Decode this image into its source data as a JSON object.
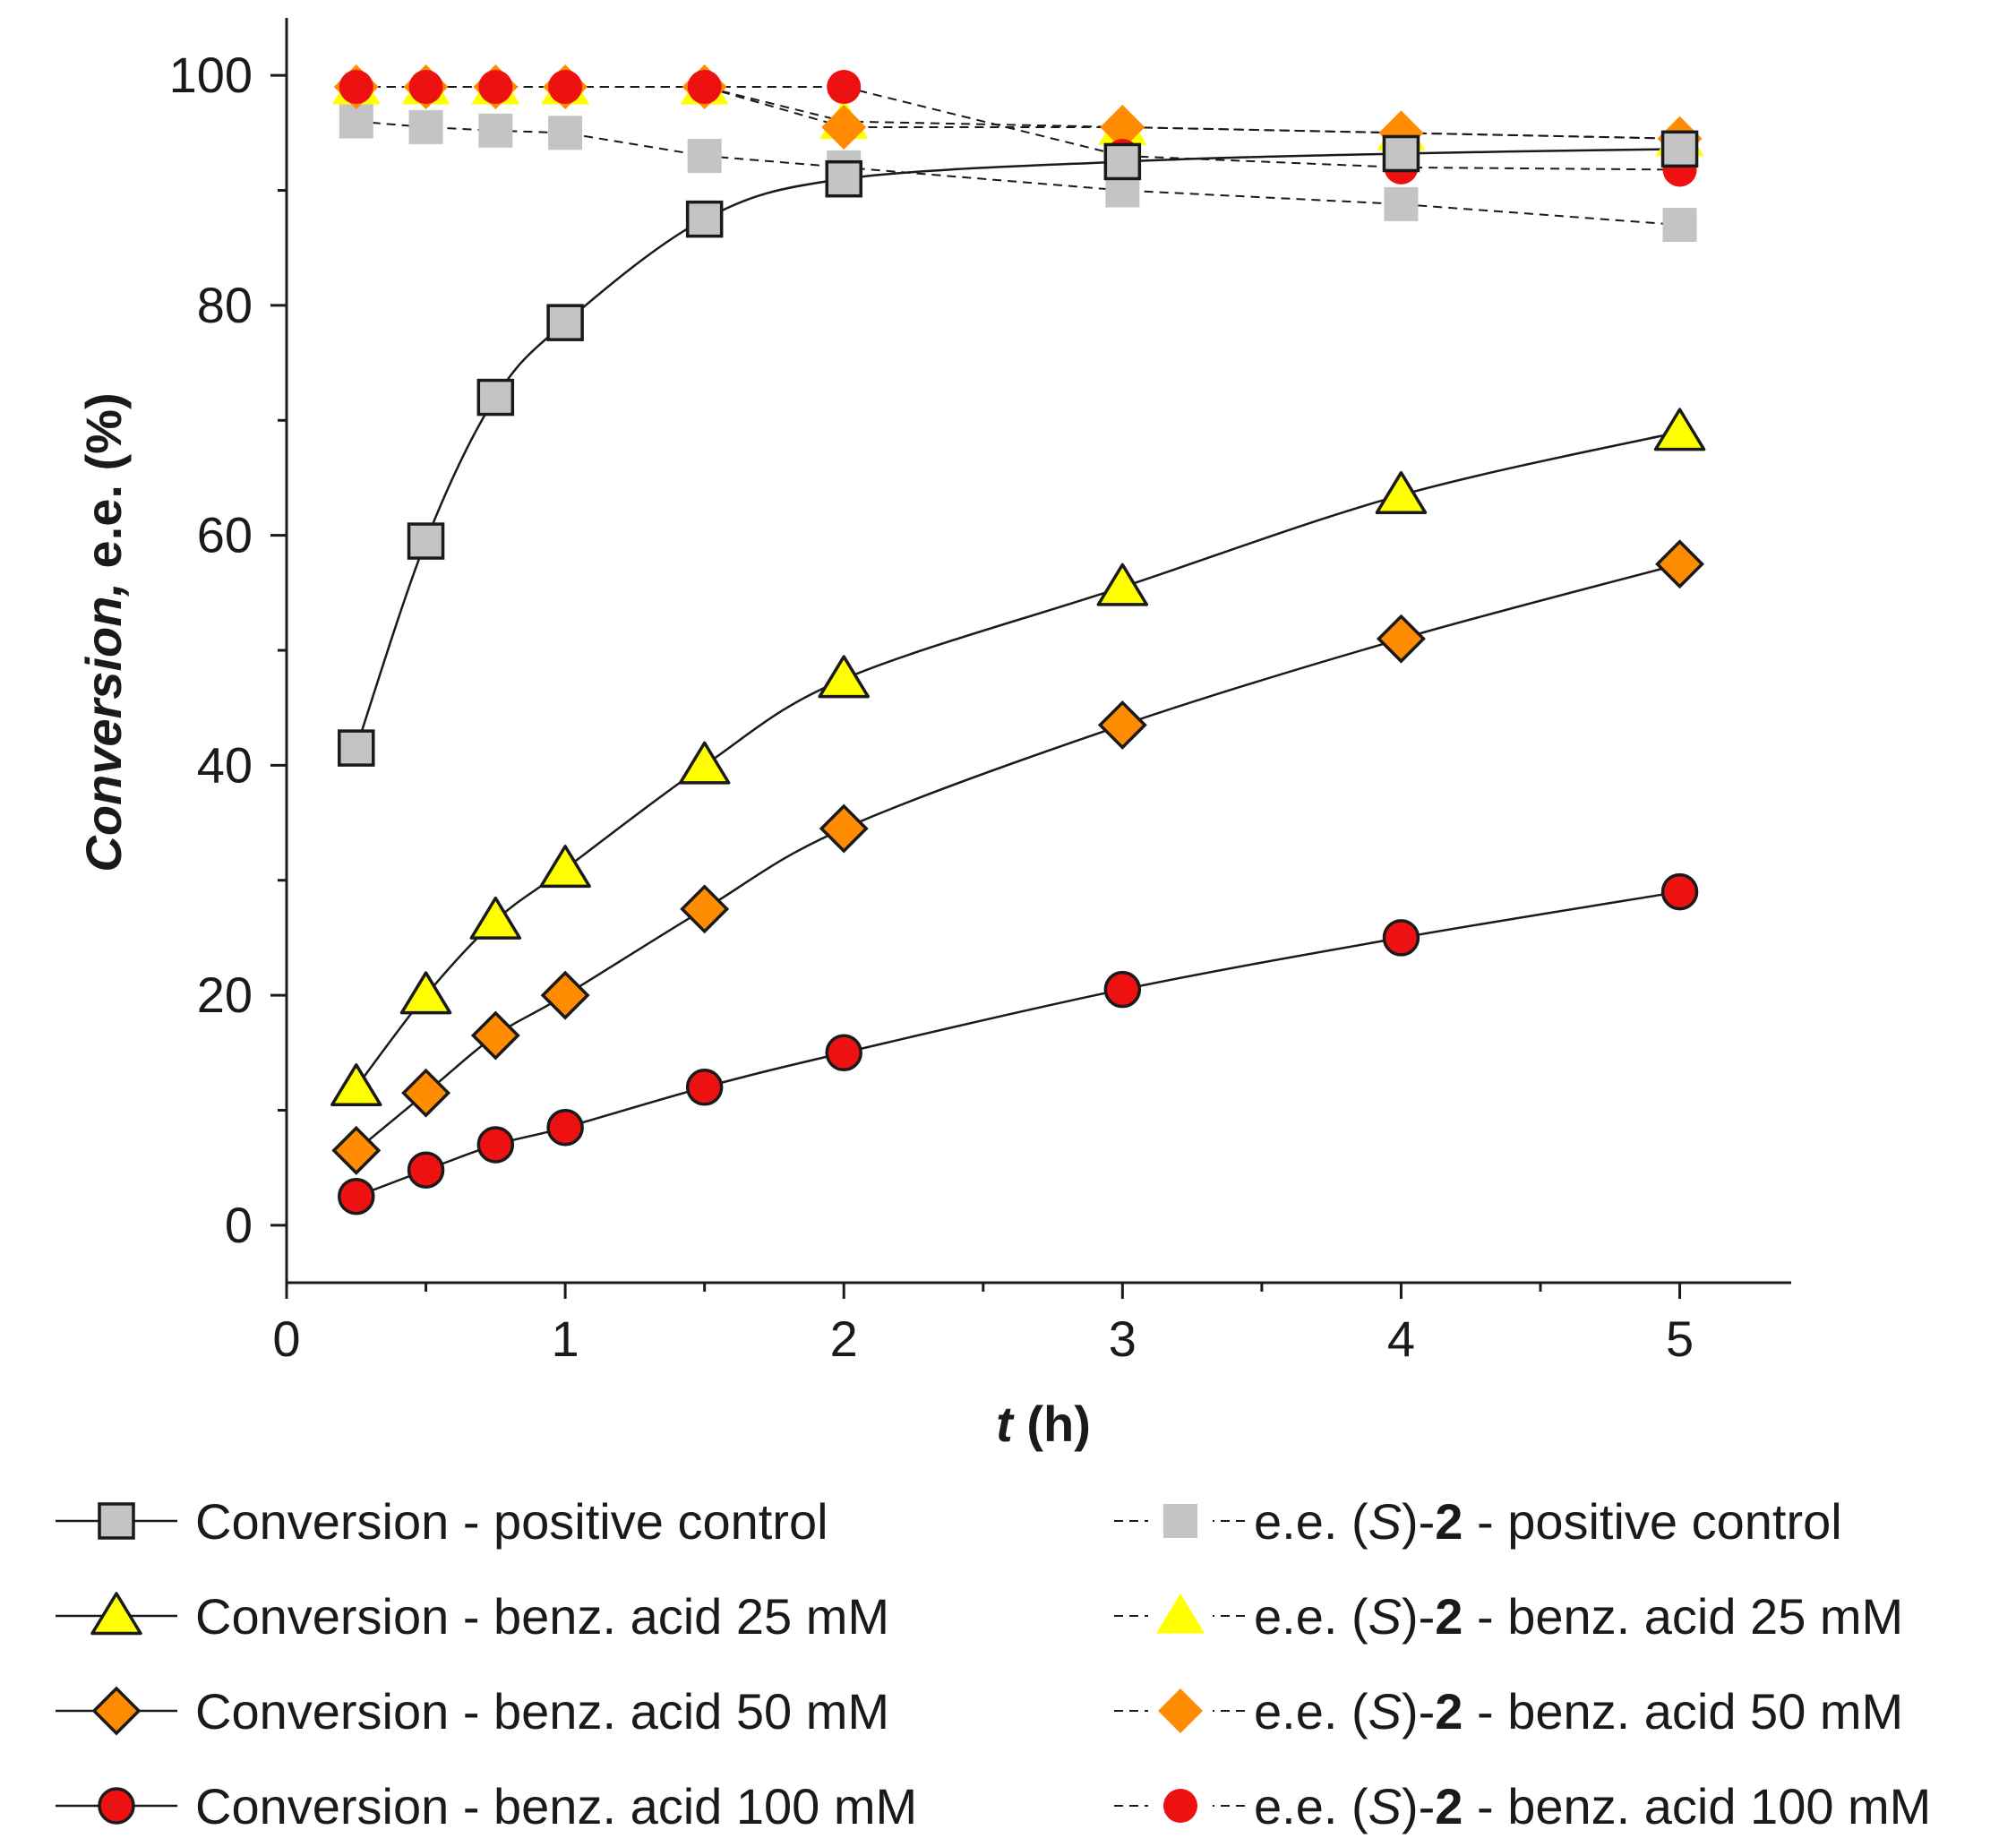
{
  "chart_data": {
    "type": "line",
    "xlabel": "t (h)",
    "xlabel_parts": {
      "var": "t",
      "unit": "(h)"
    },
    "ylabel": "Conversion, e.e. (%)",
    "ylabel_parts": {
      "italic": "Conversion,",
      "rest": " e.e. (%)"
    },
    "xlim": [
      0,
      5.4
    ],
    "ylim": [
      -5,
      105
    ],
    "xticks": [
      0,
      1,
      2,
      3,
      4,
      5
    ],
    "yticks": [
      0,
      20,
      40,
      60,
      80,
      100
    ],
    "x": [
      0.25,
      0.5,
      0.75,
      1,
      1.5,
      2,
      3,
      4,
      5
    ],
    "grid": false,
    "legend_position": "bottom",
    "series": [
      {
        "name": "Conversion - positive control",
        "kind": "conversion",
        "marker": "square",
        "fill": "#c4c4c4",
        "values": [
          41.5,
          59.5,
          72,
          78.5,
          87.5,
          91,
          92.5,
          93.2,
          93.6
        ]
      },
      {
        "name": "Conversion - benz. acid 25 mM",
        "kind": "conversion",
        "marker": "triangle",
        "fill": "#ffff00",
        "values": [
          12,
          20,
          26.5,
          31,
          40,
          47.5,
          55.5,
          63.5,
          69
        ]
      },
      {
        "name": "Conversion - benz. acid 50 mM",
        "kind": "conversion",
        "marker": "diamond",
        "fill": "#ff8c00",
        "values": [
          6.5,
          11.5,
          16.5,
          20,
          27.5,
          34.5,
          43.5,
          51,
          57.5
        ]
      },
      {
        "name": "Conversion - benz. acid 100 mM",
        "kind": "conversion",
        "marker": "circle",
        "fill": "#ee1111",
        "values": [
          2.5,
          4.8,
          7,
          8.5,
          12,
          15,
          20.5,
          25,
          29
        ]
      },
      {
        "name": "e.e. (S)-2 - positive control",
        "name_parts": [
          "e.e. (",
          "S",
          ")-",
          "2",
          " - positive control"
        ],
        "kind": "ee",
        "marker": "square",
        "fill": "#c4c4c4",
        "values": [
          96,
          95.5,
          95.2,
          95,
          93,
          92,
          90,
          88.8,
          87
        ]
      },
      {
        "name": "e.e. (S)-2 - benz. acid 25 mM",
        "name_parts": [
          "e.e. (",
          "S",
          ")-",
          "2",
          " - benz. acid 25 mM"
        ],
        "kind": "ee",
        "marker": "triangle",
        "fill": "#ffff00",
        "values": [
          99,
          99,
          99,
          99,
          99,
          96,
          95.5,
          95,
          94.5
        ]
      },
      {
        "name": "e.e. (S)-2 - benz. acid 50 mM",
        "name_parts": [
          "e.e. (",
          "S",
          ")-",
          "2",
          " - benz. acid 50 mM"
        ],
        "kind": "ee",
        "marker": "diamond",
        "fill": "#ff8c00",
        "values": [
          99,
          99,
          99,
          99,
          99,
          95.5,
          95.5,
          95,
          94.5
        ]
      },
      {
        "name": "e.e. (S)-2 - benz. acid 100 mM",
        "name_parts": [
          "e.e. (",
          "S",
          ")-",
          "2",
          " - benz. acid 100 mM"
        ],
        "kind": "ee",
        "marker": "circle",
        "fill": "#ee1111",
        "values": [
          99,
          99,
          99,
          99,
          99,
          99,
          93,
          92,
          91.8
        ]
      }
    ]
  }
}
